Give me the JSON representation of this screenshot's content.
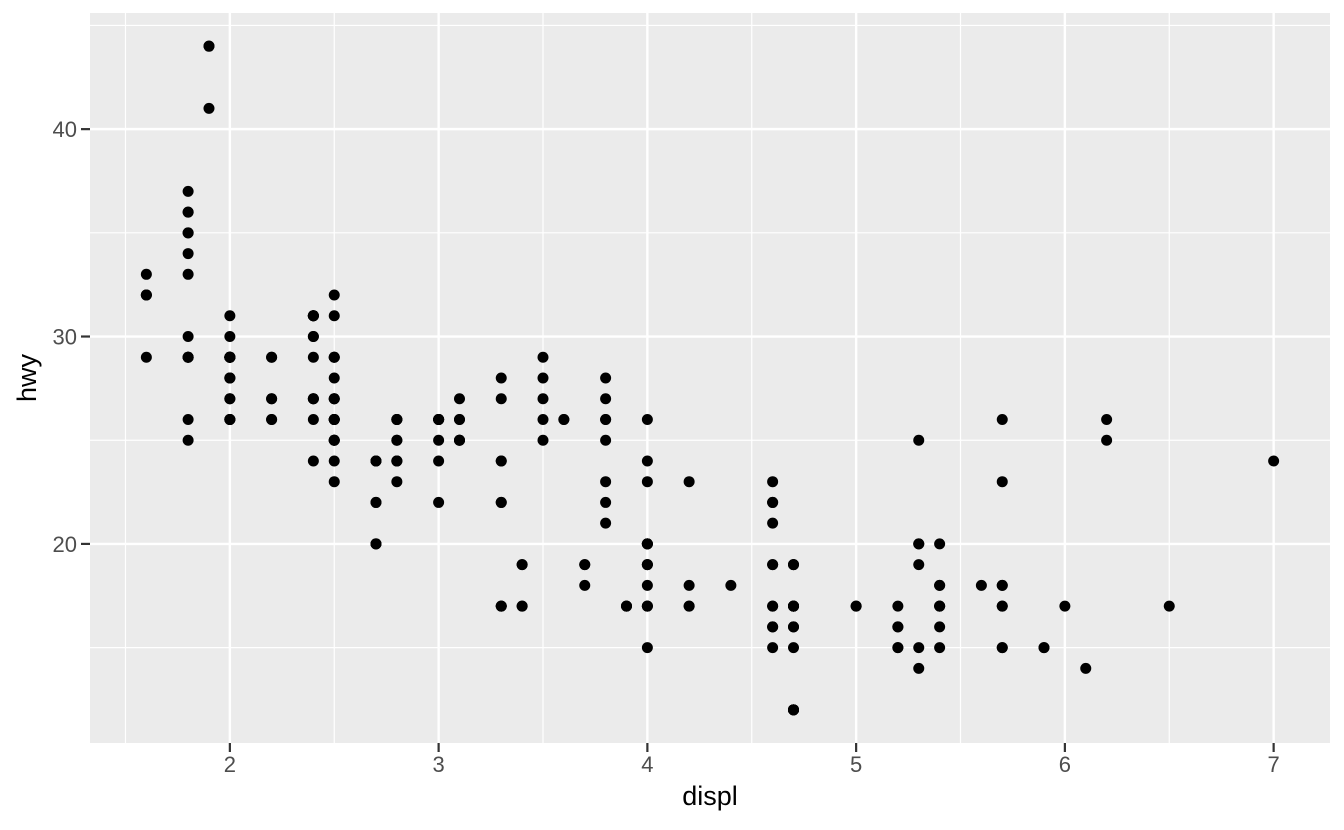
{
  "figure": {
    "background": "#FFFFFF",
    "panel_background": "#EBEBEB",
    "grid_color": "#FFFFFF",
    "point_color": "#000000",
    "tick_label_color": "#4D4D4D",
    "axis_title_color": "#000000",
    "tick_mark_color": "#333333"
  },
  "chart_data": {
    "type": "scatter",
    "title": "",
    "xlabel": "displ",
    "ylabel": "hwy",
    "xlim": [
      1.33,
      7.27
    ],
    "ylim": [
      10.4,
      45.6
    ],
    "x_ticks": [
      2,
      3,
      4,
      5,
      6,
      7
    ],
    "x_tick_labels": [
      "2",
      "3",
      "4",
      "5",
      "6",
      "7"
    ],
    "y_ticks": [
      20,
      30,
      40
    ],
    "y_tick_labels": [
      "20",
      "30",
      "40"
    ],
    "x_minor_ticks": [
      1.5,
      2.5,
      3.5,
      4.5,
      5.5,
      6.5
    ],
    "y_minor_ticks": [
      15,
      25,
      35,
      45
    ],
    "grid": "major+minor",
    "legend": "none",
    "theme": "ggplot2-grey",
    "points": [
      [
        1.8,
        29
      ],
      [
        1.8,
        29
      ],
      [
        2,
        31
      ],
      [
        2,
        30
      ],
      [
        2.8,
        26
      ],
      [
        2.8,
        26
      ],
      [
        3.1,
        27
      ],
      [
        1.8,
        26
      ],
      [
        1.8,
        25
      ],
      [
        2,
        28
      ],
      [
        2,
        27
      ],
      [
        2.8,
        25
      ],
      [
        2.8,
        25
      ],
      [
        3.1,
        25
      ],
      [
        3.1,
        25
      ],
      [
        2.8,
        24
      ],
      [
        3.1,
        25
      ],
      [
        4.2,
        23
      ],
      [
        5.3,
        20
      ],
      [
        5.3,
        15
      ],
      [
        5.3,
        20
      ],
      [
        5.7,
        17
      ],
      [
        6,
        17
      ],
      [
        5.7,
        26
      ],
      [
        5.7,
        23
      ],
      [
        6.2,
        26
      ],
      [
        6.2,
        25
      ],
      [
        7,
        24
      ],
      [
        5.3,
        19
      ],
      [
        5.3,
        14
      ],
      [
        5.7,
        15
      ],
      [
        6.5,
        17
      ],
      [
        2.4,
        27
      ],
      [
        2.4,
        30
      ],
      [
        3.1,
        26
      ],
      [
        3.5,
        29
      ],
      [
        3.6,
        26
      ],
      [
        2.4,
        24
      ],
      [
        3,
        24
      ],
      [
        3.3,
        22
      ],
      [
        3.3,
        22
      ],
      [
        3.3,
        24
      ],
      [
        3.3,
        24
      ],
      [
        3.3,
        17
      ],
      [
        3.8,
        22
      ],
      [
        3.8,
        21
      ],
      [
        3.8,
        23
      ],
      [
        4,
        23
      ],
      [
        3.7,
        19
      ],
      [
        3.7,
        18
      ],
      [
        3.9,
        17
      ],
      [
        3.9,
        17
      ],
      [
        4.7,
        19
      ],
      [
        4.7,
        19
      ],
      [
        4.7,
        12
      ],
      [
        5.2,
        17
      ],
      [
        5.2,
        15
      ],
      [
        3.9,
        17
      ],
      [
        4.7,
        17
      ],
      [
        4.7,
        12
      ],
      [
        4.7,
        17
      ],
      [
        4.7,
        16
      ],
      [
        5.2,
        16
      ],
      [
        5.7,
        15
      ],
      [
        5.9,
        15
      ],
      [
        4.7,
        17
      ],
      [
        4.7,
        17
      ],
      [
        4.7,
        12
      ],
      [
        4.7,
        16
      ],
      [
        4.7,
        12
      ],
      [
        5.2,
        15
      ],
      [
        5.2,
        16
      ],
      [
        5.7,
        17
      ],
      [
        5.9,
        15
      ],
      [
        4.6,
        17
      ],
      [
        5.4,
        17
      ],
      [
        5.4,
        18
      ],
      [
        4,
        17
      ],
      [
        4,
        19
      ],
      [
        4,
        17
      ],
      [
        4,
        19
      ],
      [
        4.6,
        19
      ],
      [
        5,
        17
      ],
      [
        4.2,
        17
      ],
      [
        4.2,
        17
      ],
      [
        4.6,
        16
      ],
      [
        4.6,
        16
      ],
      [
        4.6,
        17
      ],
      [
        5.4,
        15
      ],
      [
        5.4,
        17
      ],
      [
        3.8,
        26
      ],
      [
        3.8,
        25
      ],
      [
        4,
        26
      ],
      [
        4,
        24
      ],
      [
        4.6,
        21
      ],
      [
        4.6,
        22
      ],
      [
        4.6,
        23
      ],
      [
        4.6,
        22
      ],
      [
        5.4,
        20
      ],
      [
        1.6,
        33
      ],
      [
        1.6,
        32
      ],
      [
        1.6,
        32
      ],
      [
        1.6,
        29
      ],
      [
        1.6,
        32
      ],
      [
        1.8,
        34
      ],
      [
        1.8,
        36
      ],
      [
        1.8,
        36
      ],
      [
        2,
        29
      ],
      [
        2.4,
        26
      ],
      [
        2.4,
        27
      ],
      [
        2.4,
        30
      ],
      [
        2.4,
        31
      ],
      [
        2.5,
        26
      ],
      [
        2.5,
        26
      ],
      [
        3.3,
        28
      ],
      [
        2,
        26
      ],
      [
        2,
        29
      ],
      [
        2,
        28
      ],
      [
        2,
        27
      ],
      [
        2.7,
        24
      ],
      [
        2.7,
        24
      ],
      [
        2.7,
        24
      ],
      [
        3,
        22
      ],
      [
        3.7,
        19
      ],
      [
        4,
        20
      ],
      [
        4.7,
        17
      ],
      [
        4.7,
        12
      ],
      [
        4.7,
        19
      ],
      [
        5.7,
        18
      ],
      [
        6.1,
        14
      ],
      [
        4,
        15
      ],
      [
        4.2,
        18
      ],
      [
        4.4,
        18
      ],
      [
        4.6,
        15
      ],
      [
        5.4,
        17
      ],
      [
        5.4,
        16
      ],
      [
        5.4,
        18
      ],
      [
        4,
        17
      ],
      [
        4,
        19
      ],
      [
        4.6,
        19
      ],
      [
        5,
        17
      ],
      [
        2.4,
        29
      ],
      [
        2.4,
        27
      ],
      [
        2.5,
        31
      ],
      [
        2.5,
        32
      ],
      [
        3.5,
        27
      ],
      [
        3.5,
        26
      ],
      [
        3,
        26
      ],
      [
        3,
        25
      ],
      [
        3.5,
        25
      ],
      [
        3.3,
        17
      ],
      [
        3.3,
        17
      ],
      [
        4,
        20
      ],
      [
        5.6,
        18
      ],
      [
        3.1,
        26
      ],
      [
        3.8,
        26
      ],
      [
        3.8,
        27
      ],
      [
        3.8,
        28
      ],
      [
        5.3,
        25
      ],
      [
        2.5,
        25
      ],
      [
        2.5,
        24
      ],
      [
        2.5,
        27
      ],
      [
        2.5,
        25
      ],
      [
        2.5,
        26
      ],
      [
        2.5,
        23
      ],
      [
        2.2,
        26
      ],
      [
        2.2,
        26
      ],
      [
        2.5,
        26
      ],
      [
        2.5,
        26
      ],
      [
        2.5,
        25
      ],
      [
        2.5,
        27
      ],
      [
        2.5,
        25
      ],
      [
        2.5,
        27
      ],
      [
        2.7,
        20
      ],
      [
        2.7,
        20
      ],
      [
        3.4,
        19
      ],
      [
        3.4,
        17
      ],
      [
        4,
        20
      ],
      [
        4.7,
        17
      ],
      [
        2.2,
        29
      ],
      [
        2.2,
        27
      ],
      [
        2.4,
        31
      ],
      [
        2.4,
        31
      ],
      [
        3,
        26
      ],
      [
        3,
        26
      ],
      [
        3.5,
        28
      ],
      [
        2.2,
        27
      ],
      [
        2.2,
        29
      ],
      [
        2.4,
        31
      ],
      [
        2.4,
        31
      ],
      [
        3,
        26
      ],
      [
        3,
        26
      ],
      [
        3.3,
        27
      ],
      [
        1.8,
        30
      ],
      [
        1.8,
        33
      ],
      [
        1.8,
        35
      ],
      [
        1.8,
        37
      ],
      [
        1.8,
        35
      ],
      [
        4.7,
        15
      ],
      [
        5.7,
        18
      ],
      [
        2.7,
        22
      ],
      [
        2.7,
        20
      ],
      [
        2.7,
        22
      ],
      [
        3.4,
        17
      ],
      [
        3.4,
        19
      ],
      [
        4,
        18
      ],
      [
        4,
        20
      ],
      [
        2,
        29
      ],
      [
        2,
        26
      ],
      [
        2,
        29
      ],
      [
        2,
        29
      ],
      [
        2.8,
        24
      ],
      [
        1.9,
        44
      ],
      [
        2,
        29
      ],
      [
        2,
        26
      ],
      [
        2,
        29
      ],
      [
        2,
        29
      ],
      [
        2.5,
        29
      ],
      [
        2.5,
        29
      ],
      [
        2.8,
        23
      ],
      [
        2.8,
        24
      ],
      [
        1.9,
        44
      ],
      [
        1.9,
        41
      ],
      [
        2,
        29
      ],
      [
        2,
        26
      ],
      [
        2.5,
        28
      ],
      [
        2.5,
        29
      ],
      [
        1.8,
        29
      ],
      [
        1.8,
        29
      ],
      [
        2,
        28
      ],
      [
        2,
        29
      ],
      [
        2.8,
        26
      ],
      [
        2.8,
        26
      ],
      [
        3.6,
        26
      ]
    ]
  }
}
